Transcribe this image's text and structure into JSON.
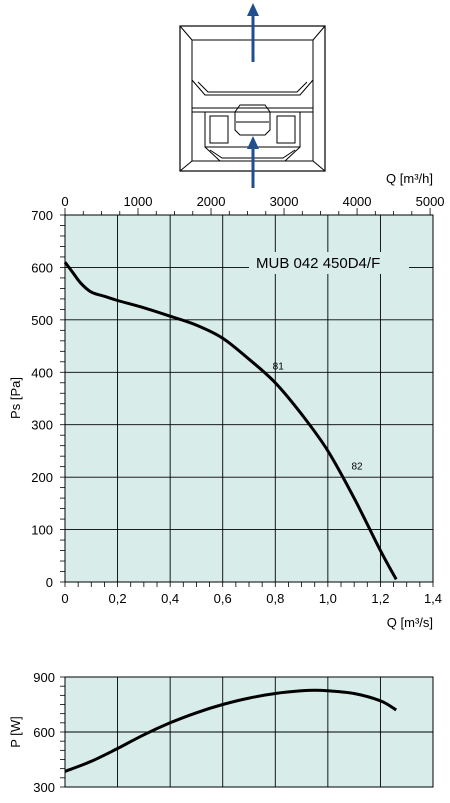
{
  "colors": {
    "plot_background": "#d8ede9",
    "grid": "#000000",
    "curve": "#000000",
    "arrow": "#1f4f8f"
  },
  "icon": "fan-unit-airflow-diagram-icon",
  "chart_data": [
    {
      "type": "line",
      "title": "MUB 042 450D4/F",
      "xlabel": "Q [m³/s]",
      "ylabel": "Ps [Pa]",
      "x2label": "Q [m³/h]",
      "xlim": [
        0,
        1.4
      ],
      "ylim": [
        0,
        700
      ],
      "x2lim": [
        0,
        5000
      ],
      "xticks": [
        "0",
        "0,2",
        "0,4",
        "0,6",
        "0,8",
        "1,0",
        "1,2",
        "1,4"
      ],
      "yticks": [
        "0",
        "100",
        "200",
        "300",
        "400",
        "500",
        "600",
        "700"
      ],
      "x2ticks": [
        "0",
        "1000",
        "2000",
        "3000",
        "4000",
        "5000"
      ],
      "grid": true,
      "series": [
        {
          "x": [
            0,
            0.03,
            0.06,
            0.1,
            0.15,
            0.2,
            0.3,
            0.4,
            0.5,
            0.6,
            0.7,
            0.8,
            0.9,
            1.0,
            1.1,
            1.2,
            1.26
          ],
          "y": [
            610,
            590,
            570,
            553,
            545,
            537,
            523,
            507,
            490,
            465,
            425,
            380,
            320,
            250,
            160,
            60,
            5
          ]
        }
      ],
      "annotations": [
        {
          "text": "81",
          "x": 0.79,
          "y": 405
        },
        {
          "text": "82",
          "x": 1.09,
          "y": 215
        }
      ]
    },
    {
      "type": "line",
      "ylabel": "P [W]",
      "xlim": [
        0,
        1.4
      ],
      "ylim": [
        300,
        900
      ],
      "yticks": [
        "300",
        "600",
        "900"
      ],
      "grid": true,
      "series": [
        {
          "x": [
            0,
            0.1,
            0.2,
            0.3,
            0.4,
            0.5,
            0.6,
            0.7,
            0.8,
            0.9,
            0.95,
            1.0,
            1.1,
            1.2,
            1.26
          ],
          "y": [
            385,
            440,
            510,
            585,
            650,
            705,
            750,
            785,
            810,
            825,
            828,
            825,
            810,
            770,
            720
          ]
        }
      ]
    }
  ]
}
